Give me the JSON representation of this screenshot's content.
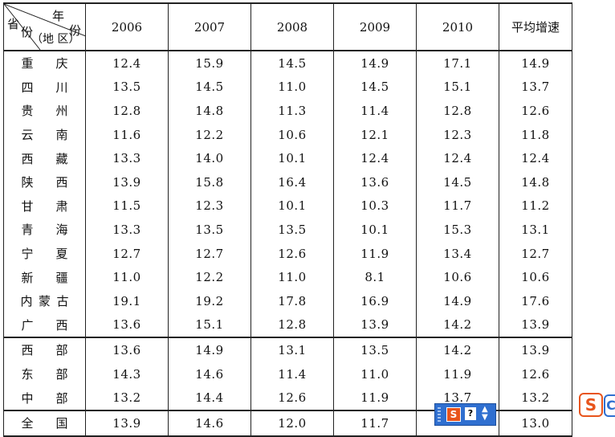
{
  "header": {
    "corner": {
      "year": "年",
      "fen_right": "份",
      "province_top": "省",
      "fen_left": "份",
      "region": "（地 区）"
    },
    "years": [
      "2006",
      "2007",
      "2008",
      "2009",
      "2010"
    ],
    "avg": "平均增速"
  },
  "groups": [
    {
      "rows": [
        {
          "chars": [
            "重",
            "庆"
          ],
          "values": [
            "12.4",
            "15.9",
            "14.5",
            "14.9",
            "17.1",
            "14.9"
          ]
        },
        {
          "chars": [
            "四",
            "川"
          ],
          "values": [
            "13.5",
            "14.5",
            "11.0",
            "14.5",
            "15.1",
            "13.7"
          ]
        },
        {
          "chars": [
            "贵",
            "州"
          ],
          "values": [
            "12.8",
            "14.8",
            "11.3",
            "11.4",
            "12.8",
            "12.6"
          ]
        },
        {
          "chars": [
            "云",
            "南"
          ],
          "values": [
            "11.6",
            "12.2",
            "10.6",
            "12.1",
            "12.3",
            "11.8"
          ]
        },
        {
          "chars": [
            "西",
            "藏"
          ],
          "values": [
            "13.3",
            "14.0",
            "10.1",
            "12.4",
            "12.4",
            "12.4"
          ]
        },
        {
          "chars": [
            "陕",
            "西"
          ],
          "values": [
            "13.9",
            "15.8",
            "16.4",
            "13.6",
            "14.5",
            "14.8"
          ]
        },
        {
          "chars": [
            "甘",
            "肃"
          ],
          "values": [
            "11.5",
            "12.3",
            "10.1",
            "10.3",
            "11.7",
            "11.2"
          ]
        },
        {
          "chars": [
            "青",
            "海"
          ],
          "values": [
            "13.3",
            "13.5",
            "13.5",
            "10.1",
            "15.3",
            "13.1"
          ]
        },
        {
          "chars": [
            "宁",
            "夏"
          ],
          "values": [
            "12.7",
            "12.7",
            "12.6",
            "11.9",
            "13.4",
            "12.7"
          ]
        },
        {
          "chars": [
            "新",
            "疆"
          ],
          "values": [
            "11.0",
            "12.2",
            "11.0",
            "8.1",
            "10.6",
            "10.6"
          ]
        },
        {
          "chars": [
            "内",
            "蒙",
            "古"
          ],
          "values": [
            "19.1",
            "19.2",
            "17.8",
            "16.9",
            "14.9",
            "17.6"
          ]
        },
        {
          "chars": [
            "广",
            "西"
          ],
          "values": [
            "13.6",
            "15.1",
            "12.8",
            "13.9",
            "14.2",
            "13.9"
          ]
        }
      ]
    },
    {
      "rows": [
        {
          "chars": [
            "西",
            "部"
          ],
          "values": [
            "13.6",
            "14.9",
            "13.1",
            "13.5",
            "14.2",
            "13.9"
          ]
        },
        {
          "chars": [
            "东",
            "部"
          ],
          "values": [
            "14.3",
            "14.6",
            "11.4",
            "11.0",
            "11.9",
            "12.6"
          ]
        },
        {
          "chars": [
            "中",
            "部"
          ],
          "values": [
            "13.2",
            "14.4",
            "12.6",
            "11.9",
            "13.7",
            "13.2"
          ]
        }
      ]
    },
    {
      "rows": [
        {
          "chars": [
            "全",
            "国"
          ],
          "values": [
            "13.9",
            "14.6",
            "12.0",
            "11.7",
            "",
            "13.0"
          ]
        }
      ]
    }
  ],
  "ime_toolbar": {
    "logo": "S",
    "help": "?",
    "arrows": "⌃⌄",
    "icon": "sogou-icon"
  },
  "side_widget": {
    "logo": "S",
    "partial": "C"
  },
  "colors": {
    "ime_blue": "#2f6fd0",
    "sogou_orange": "#e8541c"
  }
}
